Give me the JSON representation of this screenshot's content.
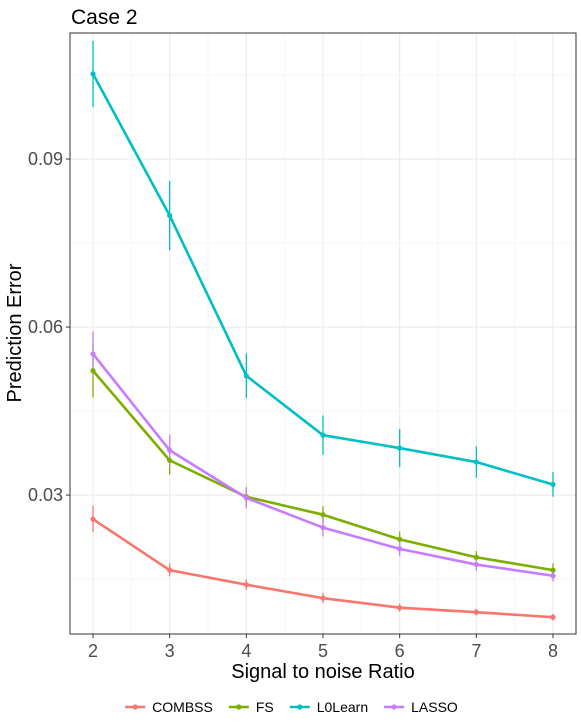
{
  "chart_data": {
    "type": "line",
    "title": "Case 2",
    "xlabel": "Signal to noise Ratio",
    "ylabel": "Prediction Error",
    "x": [
      2,
      3,
      4,
      5,
      6,
      7,
      8
    ],
    "x_tick_labels": [
      "2",
      "3",
      "4",
      "5",
      "6",
      "7",
      "8"
    ],
    "y_ticks": [
      0.03,
      0.06,
      0.09
    ],
    "y_tick_labels": [
      "0.03",
      "0.06",
      "0.09"
    ],
    "xlim": [
      1.7,
      8.3
    ],
    "ylim": [
      0.0052,
      0.1125
    ],
    "grid": true,
    "legend_position": "bottom",
    "series": [
      {
        "name": "COMBSS",
        "color": "#F8766D",
        "values": [
          0.0257,
          0.0166,
          0.014,
          0.0116,
          0.0099,
          0.0091,
          0.0082
        ],
        "lower": [
          0.0234,
          0.0155,
          0.0131,
          0.0107,
          0.0092,
          0.0085,
          0.0076
        ],
        "upper": [
          0.0281,
          0.0178,
          0.0149,
          0.0125,
          0.0106,
          0.0097,
          0.0088
        ]
      },
      {
        "name": "FS",
        "color": "#7CAE00",
        "values": [
          0.0522,
          0.0362,
          0.0297,
          0.0265,
          0.0221,
          0.0189,
          0.0166
        ],
        "lower": [
          0.0474,
          0.0337,
          0.0282,
          0.025,
          0.0207,
          0.0178,
          0.0155
        ],
        "upper": [
          0.057,
          0.0388,
          0.0314,
          0.028,
          0.0235,
          0.02,
          0.0178
        ]
      },
      {
        "name": "L0Learn",
        "color": "#00BFC4",
        "values": [
          0.1052,
          0.0799,
          0.0513,
          0.0407,
          0.0384,
          0.0359,
          0.0319
        ],
        "lower": [
          0.0993,
          0.0737,
          0.0473,
          0.0372,
          0.035,
          0.0331,
          0.0297
        ],
        "upper": [
          0.1111,
          0.0861,
          0.0553,
          0.0442,
          0.0418,
          0.0387,
          0.0341
        ]
      },
      {
        "name": "LASSO",
        "color": "#C77CFF",
        "values": [
          0.0552,
          0.038,
          0.0295,
          0.0242,
          0.0204,
          0.0176,
          0.0156
        ],
        "lower": [
          0.0512,
          0.0352,
          0.0276,
          0.0226,
          0.0191,
          0.0165,
          0.0146
        ],
        "upper": [
          0.0592,
          0.0408,
          0.0314,
          0.0258,
          0.0217,
          0.0187,
          0.0166
        ]
      }
    ]
  }
}
